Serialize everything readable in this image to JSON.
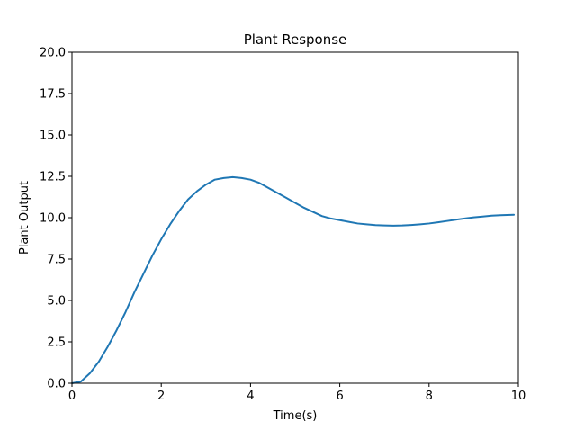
{
  "chart_data": {
    "type": "line",
    "title": "Plant Response",
    "xlabel": "Time(s)",
    "ylabel": "Plant Output",
    "xlim": [
      0,
      10
    ],
    "ylim": [
      0,
      20
    ],
    "xticks": [
      0,
      2,
      4,
      6,
      8,
      10
    ],
    "xtick_labels": [
      "0",
      "2",
      "4",
      "6",
      "8",
      "10"
    ],
    "yticks": [
      0,
      2.5,
      5,
      7.5,
      10,
      12.5,
      15,
      17.5,
      20
    ],
    "ytick_labels": [
      "0.0",
      "2.5",
      "5.0",
      "7.5",
      "10.0",
      "12.5",
      "15.0",
      "17.5",
      "20.0"
    ],
    "grid": false,
    "series": [
      {
        "color": "#1f77b4",
        "x": [
          0,
          0.2,
          0.4,
          0.6,
          0.8,
          1.0,
          1.2,
          1.4,
          1.6,
          1.8,
          2.0,
          2.2,
          2.4,
          2.6,
          2.8,
          3.0,
          3.2,
          3.4,
          3.6,
          3.8,
          4.0,
          4.2,
          4.4,
          4.6,
          4.8,
          5.0,
          5.2,
          5.4,
          5.6,
          5.8,
          6.0,
          6.2,
          6.4,
          6.6,
          6.8,
          7.0,
          7.2,
          7.4,
          7.6,
          7.8,
          8.0,
          8.2,
          8.4,
          8.6,
          8.8,
          9.0,
          9.2,
          9.4,
          9.6,
          9.9
        ],
        "y": [
          0,
          0.1,
          0.6,
          1.3,
          2.2,
          3.2,
          4.3,
          5.5,
          6.6,
          7.7,
          8.7,
          9.6,
          10.4,
          11.1,
          11.6,
          12.0,
          12.3,
          12.4,
          12.45,
          12.4,
          12.3,
          12.1,
          11.8,
          11.5,
          11.2,
          10.9,
          10.6,
          10.35,
          10.1,
          9.95,
          9.85,
          9.75,
          9.65,
          9.6,
          9.55,
          9.53,
          9.52,
          9.53,
          9.56,
          9.6,
          9.65,
          9.72,
          9.8,
          9.88,
          9.95,
          10.02,
          10.07,
          10.12,
          10.15,
          10.18
        ]
      }
    ]
  }
}
